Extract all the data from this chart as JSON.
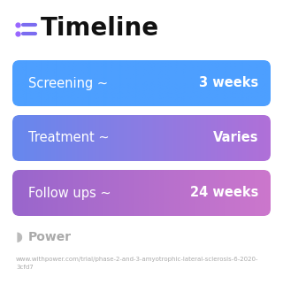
{
  "title": "Timeline",
  "title_icon_lines_color": "#7B6CF0",
  "title_color": "#111111",
  "background_color": "#ffffff",
  "rows": [
    {
      "label": "Screening ~",
      "value": "3 weeks",
      "grad_left": "#4d9fff",
      "grad_right": "#4d9fff"
    },
    {
      "label": "Treatment ~",
      "value": "Varies",
      "grad_left": "#6688ee",
      "grad_right": "#b070d8"
    },
    {
      "label": "Follow ups ~",
      "value": "24 weeks",
      "grad_left": "#9966cc",
      "grad_right": "#cc77cc"
    }
  ],
  "row_text_color": "#ffffff",
  "footer_logo_color": "#aaaaaa",
  "footer_url": "www.withpower.com/trial/phase-2-and-3-amyotrophic-lateral-sclerosis-6-2020-\n3cfd7",
  "footer_url_color": "#aaaaaa"
}
